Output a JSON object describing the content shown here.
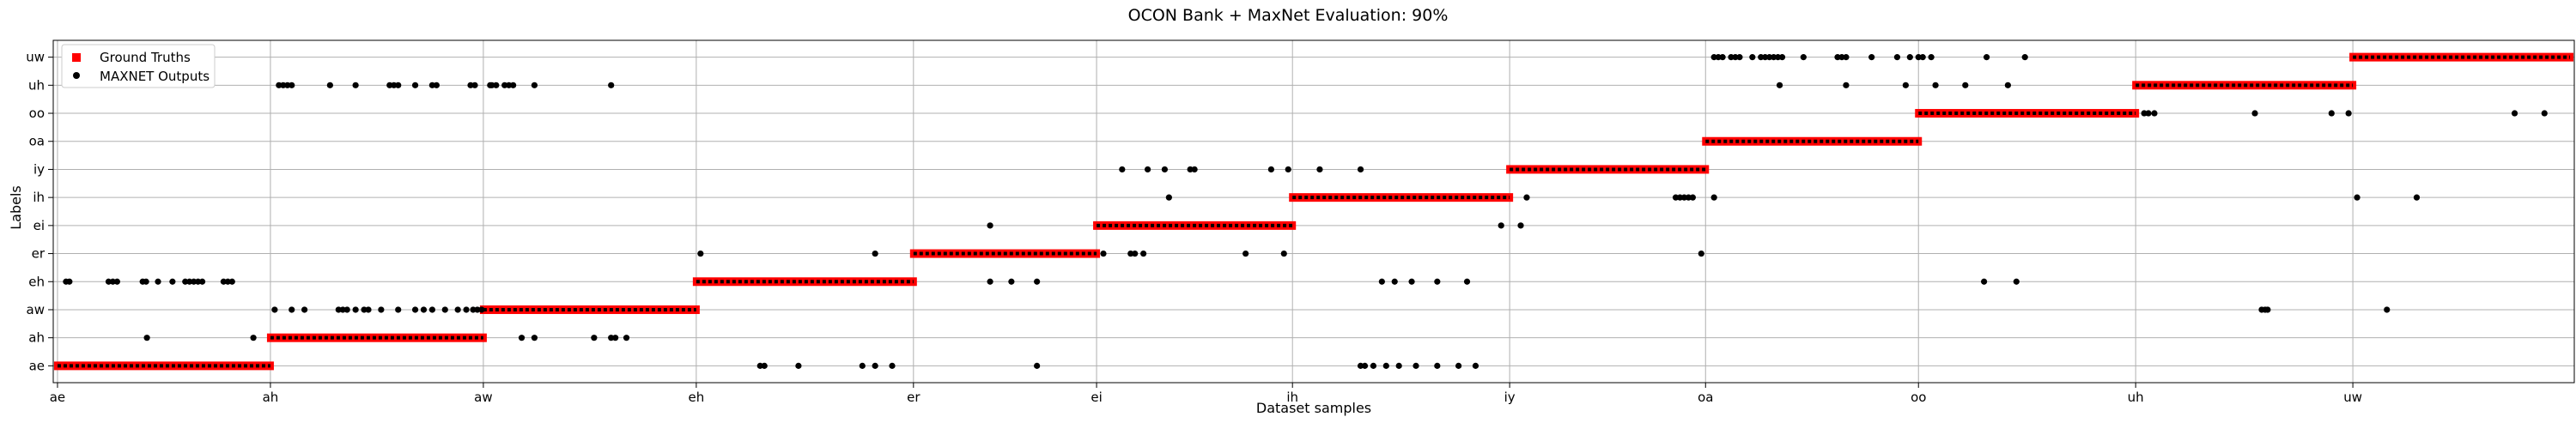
{
  "chart_data": {
    "type": "scatter",
    "title": "OCON Bank + MaxNet Evaluation: 90%",
    "xlabel": "Dataset samples",
    "ylabel": "Labels",
    "categories": [
      "ae",
      "ah",
      "aw",
      "eh",
      "er",
      "ei",
      "ih",
      "iy",
      "oa",
      "oo",
      "uh",
      "uw"
    ],
    "x_ticks": [
      {
        "label": "ae",
        "value": 0
      },
      {
        "label": "ah",
        "value": 250
      },
      {
        "label": "aw",
        "value": 500
      },
      {
        "label": "eh",
        "value": 750
      },
      {
        "label": "er",
        "value": 1005
      },
      {
        "label": "ei",
        "value": 1220
      },
      {
        "label": "ih",
        "value": 1450
      },
      {
        "label": "iy",
        "value": 1705
      },
      {
        "label": "oa",
        "value": 1935
      },
      {
        "label": "oo",
        "value": 2185
      },
      {
        "label": "uh",
        "value": 2440
      },
      {
        "label": "uw",
        "value": 2695
      }
    ],
    "xlim": [
      -5,
      2955
    ],
    "ylim": [
      -0.6,
      11.6
    ],
    "grid": true,
    "legend": {
      "placement": "top-left",
      "entries": [
        "Ground Truths",
        "MAXNET Outputs"
      ]
    },
    "series": [
      {
        "name": "Ground Truths",
        "marker": "square",
        "color": "#ff0000",
        "segments": [
          {
            "label": "ae",
            "x_start": 0,
            "x_end": 250
          },
          {
            "label": "ah",
            "x_start": 250,
            "x_end": 500
          },
          {
            "label": "aw",
            "x_start": 500,
            "x_end": 750
          },
          {
            "label": "eh",
            "x_start": 750,
            "x_end": 1005
          },
          {
            "label": "er",
            "x_start": 1005,
            "x_end": 1220
          },
          {
            "label": "ei",
            "x_start": 1220,
            "x_end": 1450
          },
          {
            "label": "ih",
            "x_start": 1450,
            "x_end": 1705
          },
          {
            "label": "iy",
            "x_start": 1705,
            "x_end": 1935
          },
          {
            "label": "oa",
            "x_start": 1935,
            "x_end": 2185
          },
          {
            "label": "oo",
            "x_start": 2185,
            "x_end": 2440
          },
          {
            "label": "uh",
            "x_start": 2440,
            "x_end": 2695
          },
          {
            "label": "uw",
            "x_start": 2695,
            "x_end": 2950
          }
        ]
      },
      {
        "name": "MAXNET Outputs",
        "marker": "circle",
        "color": "#000000",
        "runs": [
          {
            "label": "ae",
            "x_start": 0,
            "x_end": 250
          },
          {
            "label": "ah",
            "x_start": 250,
            "x_end": 500
          },
          {
            "label": "aw",
            "x_start": 500,
            "x_end": 750
          },
          {
            "label": "eh",
            "x_start": 750,
            "x_end": 1005
          },
          {
            "label": "er",
            "x_start": 1005,
            "x_end": 1220
          },
          {
            "label": "ei",
            "x_start": 1220,
            "x_end": 1450
          },
          {
            "label": "ih",
            "x_start": 1450,
            "x_end": 1705
          },
          {
            "label": "iy",
            "x_start": 1705,
            "x_end": 1935
          },
          {
            "label": "oa",
            "x_start": 1935,
            "x_end": 2185
          },
          {
            "label": "oo",
            "x_start": 2185,
            "x_end": 2440
          },
          {
            "label": "uh",
            "x_start": 2440,
            "x_end": 2695
          },
          {
            "label": "uw",
            "x_start": 2695,
            "x_end": 2950
          }
        ],
        "outliers": [
          {
            "label": "eh",
            "x": [
              10,
              14,
              60,
              65,
              70,
              100,
              104,
              118,
              135,
              150,
              155,
              160,
              165,
              170,
              195,
              200,
              205
            ]
          },
          {
            "label": "ah",
            "x": [
              105,
              230
            ]
          },
          {
            "label": "uh",
            "x": [
              260,
              265,
              270,
              275,
              320,
              350,
              390,
              395,
              400,
              420,
              440,
              445,
              485,
              490,
              508,
              510,
              515,
              525,
              530,
              535,
              560,
              650
            ]
          },
          {
            "label": "aw",
            "x": [
              255,
              275,
              290,
              330,
              335,
              340,
              350,
              360,
              365,
              380,
              400,
              420,
              430,
              440,
              455,
              470,
              480,
              488,
              493,
              498
            ]
          },
          {
            "label": "ah",
            "x": [
              545,
              560,
              630,
              650,
              655,
              668
            ]
          },
          {
            "label": "ae",
            "x": [
              825,
              830,
              870,
              945,
              960,
              980,
              1150,
              1530,
              1535,
              1545,
              1560,
              1575,
              1595,
              1620,
              1645,
              1665
            ]
          },
          {
            "label": "er",
            "x": [
              755,
              960,
              1930
            ]
          },
          {
            "label": "ei",
            "x": [
              1095,
              1695,
              1718
            ]
          },
          {
            "label": "eh",
            "x": [
              1095,
              1120,
              1150,
              1555,
              1570,
              1590,
              1620,
              1655,
              2262,
              2300
            ]
          },
          {
            "label": "er",
            "x": [
              1228,
              1260,
              1265,
              1275,
              1395,
              1440
            ]
          },
          {
            "label": "iy",
            "x": [
              1250,
              1280,
              1300,
              1330,
              1335,
              1425,
              1445,
              1482,
              1530
            ]
          },
          {
            "label": "ih",
            "x": [
              1305,
              1725,
              1900,
              1905,
              1910,
              1915,
              1920,
              1945,
              2700,
              2770
            ]
          },
          {
            "label": "uw",
            "x": [
              1945,
              1950,
              1955,
              1965,
              1970,
              1975,
              1990,
              2000,
              2005,
              2010,
              2015,
              2020,
              2025,
              2050,
              2090,
              2095,
              2100,
              2130,
              2160,
              2175,
              2185,
              2190,
              2200,
              2265,
              2310
            ]
          },
          {
            "label": "uh",
            "x": [
              2022,
              2100,
              2170,
              2205,
              2240,
              2290
            ]
          },
          {
            "label": "oo",
            "x": [
              2450,
              2455,
              2462,
              2580,
              2670,
              2690,
              2885,
              2920
            ]
          },
          {
            "label": "aw",
            "x": [
              2588,
              2592,
              2595,
              2735
            ]
          }
        ]
      }
    ]
  }
}
